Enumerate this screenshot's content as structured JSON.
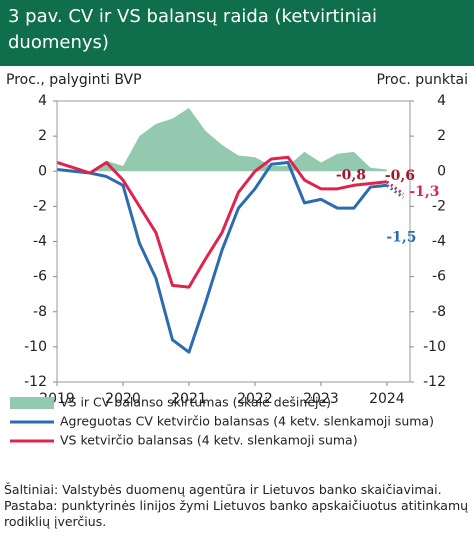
{
  "chart_data": {
    "type": "line",
    "title": "3 pav. CV ir VS balansų raida (ketvirtiniai duomenys)",
    "y_label": "Proc., palyginti BVP",
    "y2_label": "Proc. punktai",
    "x": [
      2019,
      2019.25,
      2019.5,
      2019.75,
      2020,
      2020.25,
      2020.5,
      2020.75,
      2021,
      2021.25,
      2021.5,
      2021.75,
      2022,
      2022.25,
      2022.5,
      2022.75,
      2023,
      2023.25,
      2023.5,
      2023.75,
      2024
    ],
    "xlim": [
      2019,
      2024.35
    ],
    "xticks": [
      2019,
      2020,
      2021,
      2022,
      2023,
      2024
    ],
    "ylim": [
      -12,
      4
    ],
    "yticks": [
      -12,
      -10,
      -8,
      -6,
      -4,
      -2,
      0,
      2,
      4
    ],
    "y2lim": [
      -12,
      4
    ],
    "y2ticks": [
      -12,
      -10,
      -8,
      -6,
      -4,
      -2,
      0,
      2,
      4
    ],
    "series": [
      {
        "name": "VS ir CV balanso skirtumas (skalė dešinėje)",
        "type": "area",
        "axis": "y2",
        "color": "#93c9ae",
        "values": [
          null,
          null,
          0,
          0.6,
          0.3,
          2.0,
          2.7,
          3.0,
          3.6,
          2.3,
          1.5,
          0.9,
          0.8,
          0.3,
          0.3,
          1.1,
          0.5,
          1.0,
          1.1,
          0.2,
          0.1
        ]
      },
      {
        "name": "Agreguotas CV ketvirčio balansas (4 ketv. slenkamoji suma)",
        "type": "line",
        "color": "#2b6cb0",
        "values": [
          0.1,
          0.0,
          -0.1,
          -0.3,
          -0.8,
          -4.1,
          -6.1,
          -9.6,
          -10.3,
          -7.5,
          -4.5,
          -2.1,
          -1.0,
          0.4,
          0.5,
          -1.8,
          -1.6,
          -2.1,
          -2.1,
          -0.9,
          -0.8
        ],
        "projection": {
          "x": 2024.25,
          "value": -1.5
        }
      },
      {
        "name": "VS ketvirčio balansas (4 ketv. slenkamoji suma)",
        "type": "line",
        "color": "#e0234e",
        "values": [
          0.5,
          0.2,
          -0.1,
          0.5,
          -0.5,
          -2.0,
          -3.5,
          -6.5,
          -6.6,
          -5.0,
          -3.5,
          -1.2,
          0.0,
          0.7,
          0.8,
          -0.5,
          -1.0,
          -1.0,
          -0.8,
          -0.7,
          -0.6
        ],
        "projection": {
          "x": 2024.25,
          "value": -1.3
        }
      }
    ],
    "annotations": [
      {
        "text": "-0,8",
        "color": "#a3152b"
      },
      {
        "text": "-0,6",
        "color": "#a3152b"
      },
      {
        "text": "-1,3",
        "color": "#e0234e"
      },
      {
        "text": "-1,5",
        "color": "#2b6cb0"
      }
    ],
    "notes": [
      "Šaltiniai: Valstybės duomenų agentūra ir Lietuvos banko skaičiavimai.",
      "Pastaba: punktyrinės linijos žymi Lietuvos banko apskaičiuotus atitinkamų rodiklių įverčius."
    ]
  }
}
